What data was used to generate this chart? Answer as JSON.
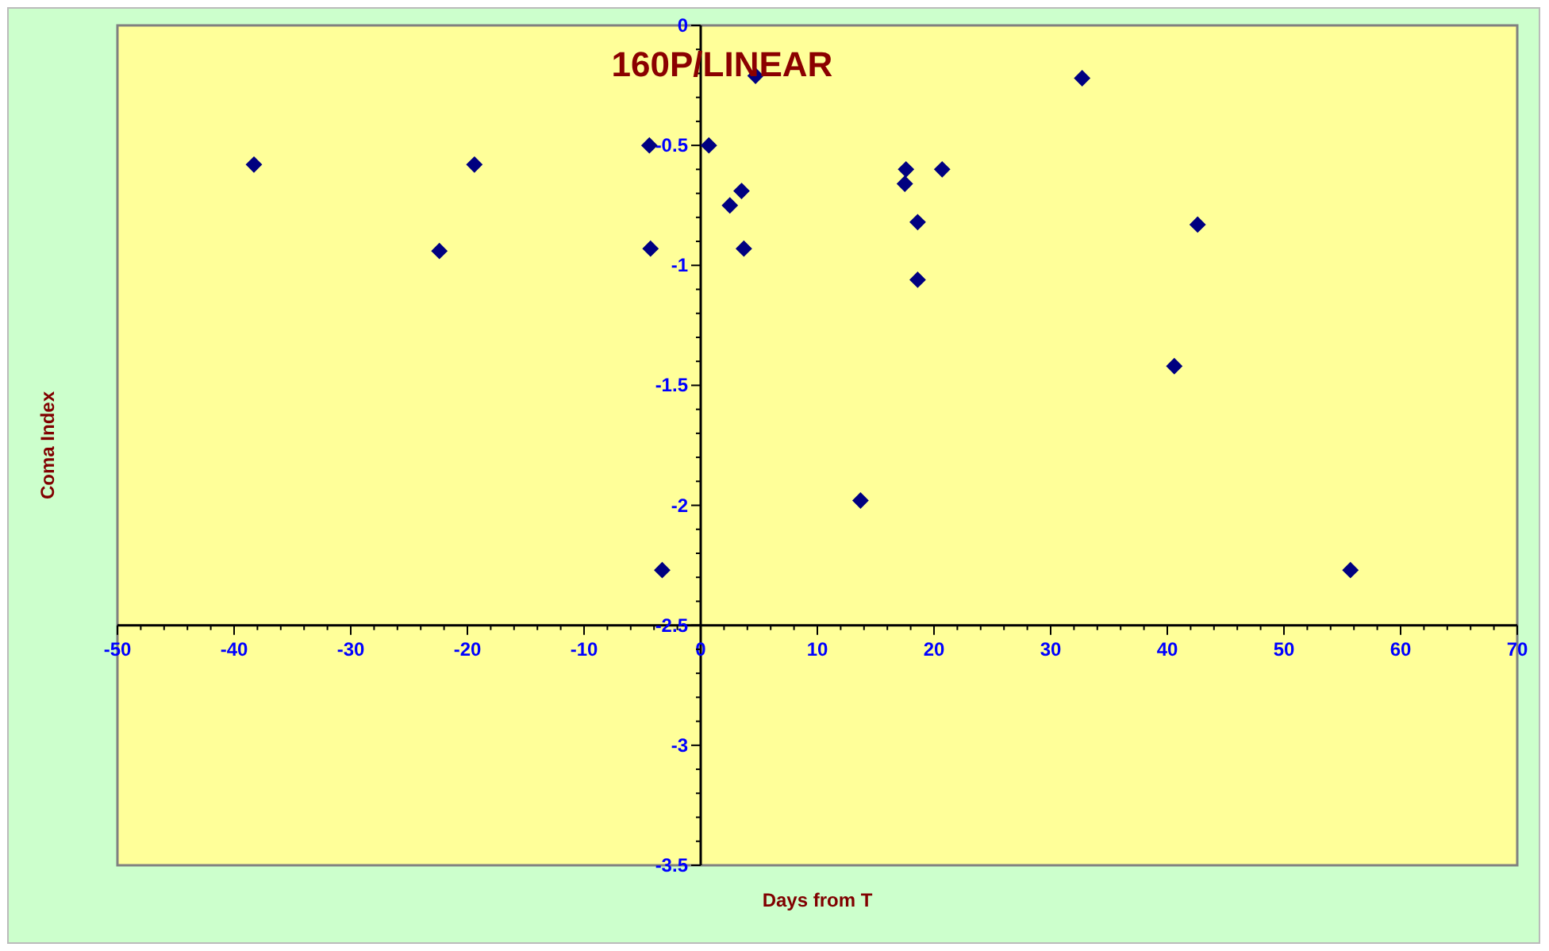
{
  "chart_data": {
    "type": "scatter",
    "title": "160P/LINEAR",
    "xlabel": "Days from T",
    "ylabel": "Coma Index",
    "series": [
      {
        "color": "#000080",
        "x": [
          -38.3,
          -22.4,
          -19.4,
          -4.4,
          -4.3,
          -3.3,
          0.7,
          4.7,
          2.5,
          3.5,
          3.7,
          13.7,
          17.6,
          17.5,
          18.6,
          18.6,
          20.7,
          32.7,
          42.6,
          40.6,
          55.7
        ],
        "values": [
          -0.58,
          -0.94,
          -0.58,
          -0.5,
          -0.93,
          -2.27,
          -0.5,
          -0.21,
          -0.75,
          -0.69,
          -0.93,
          -1.98,
          -0.6,
          -0.66,
          -0.82,
          -1.06,
          -0.6,
          -0.22,
          -0.83,
          -1.42,
          -2.27
        ]
      }
    ],
    "marker": "diamond",
    "xlim": [
      -50,
      70
    ],
    "xticks": [
      -50,
      -40,
      -30,
      -20,
      -10,
      0,
      10,
      20,
      30,
      40,
      50,
      60,
      70
    ],
    "ylim": [
      -3.5,
      0
    ],
    "yticks": [
      -3.5,
      -3,
      -2.5,
      -2,
      -1.5,
      -1,
      -0.5,
      0
    ],
    "grid": false
  }
}
